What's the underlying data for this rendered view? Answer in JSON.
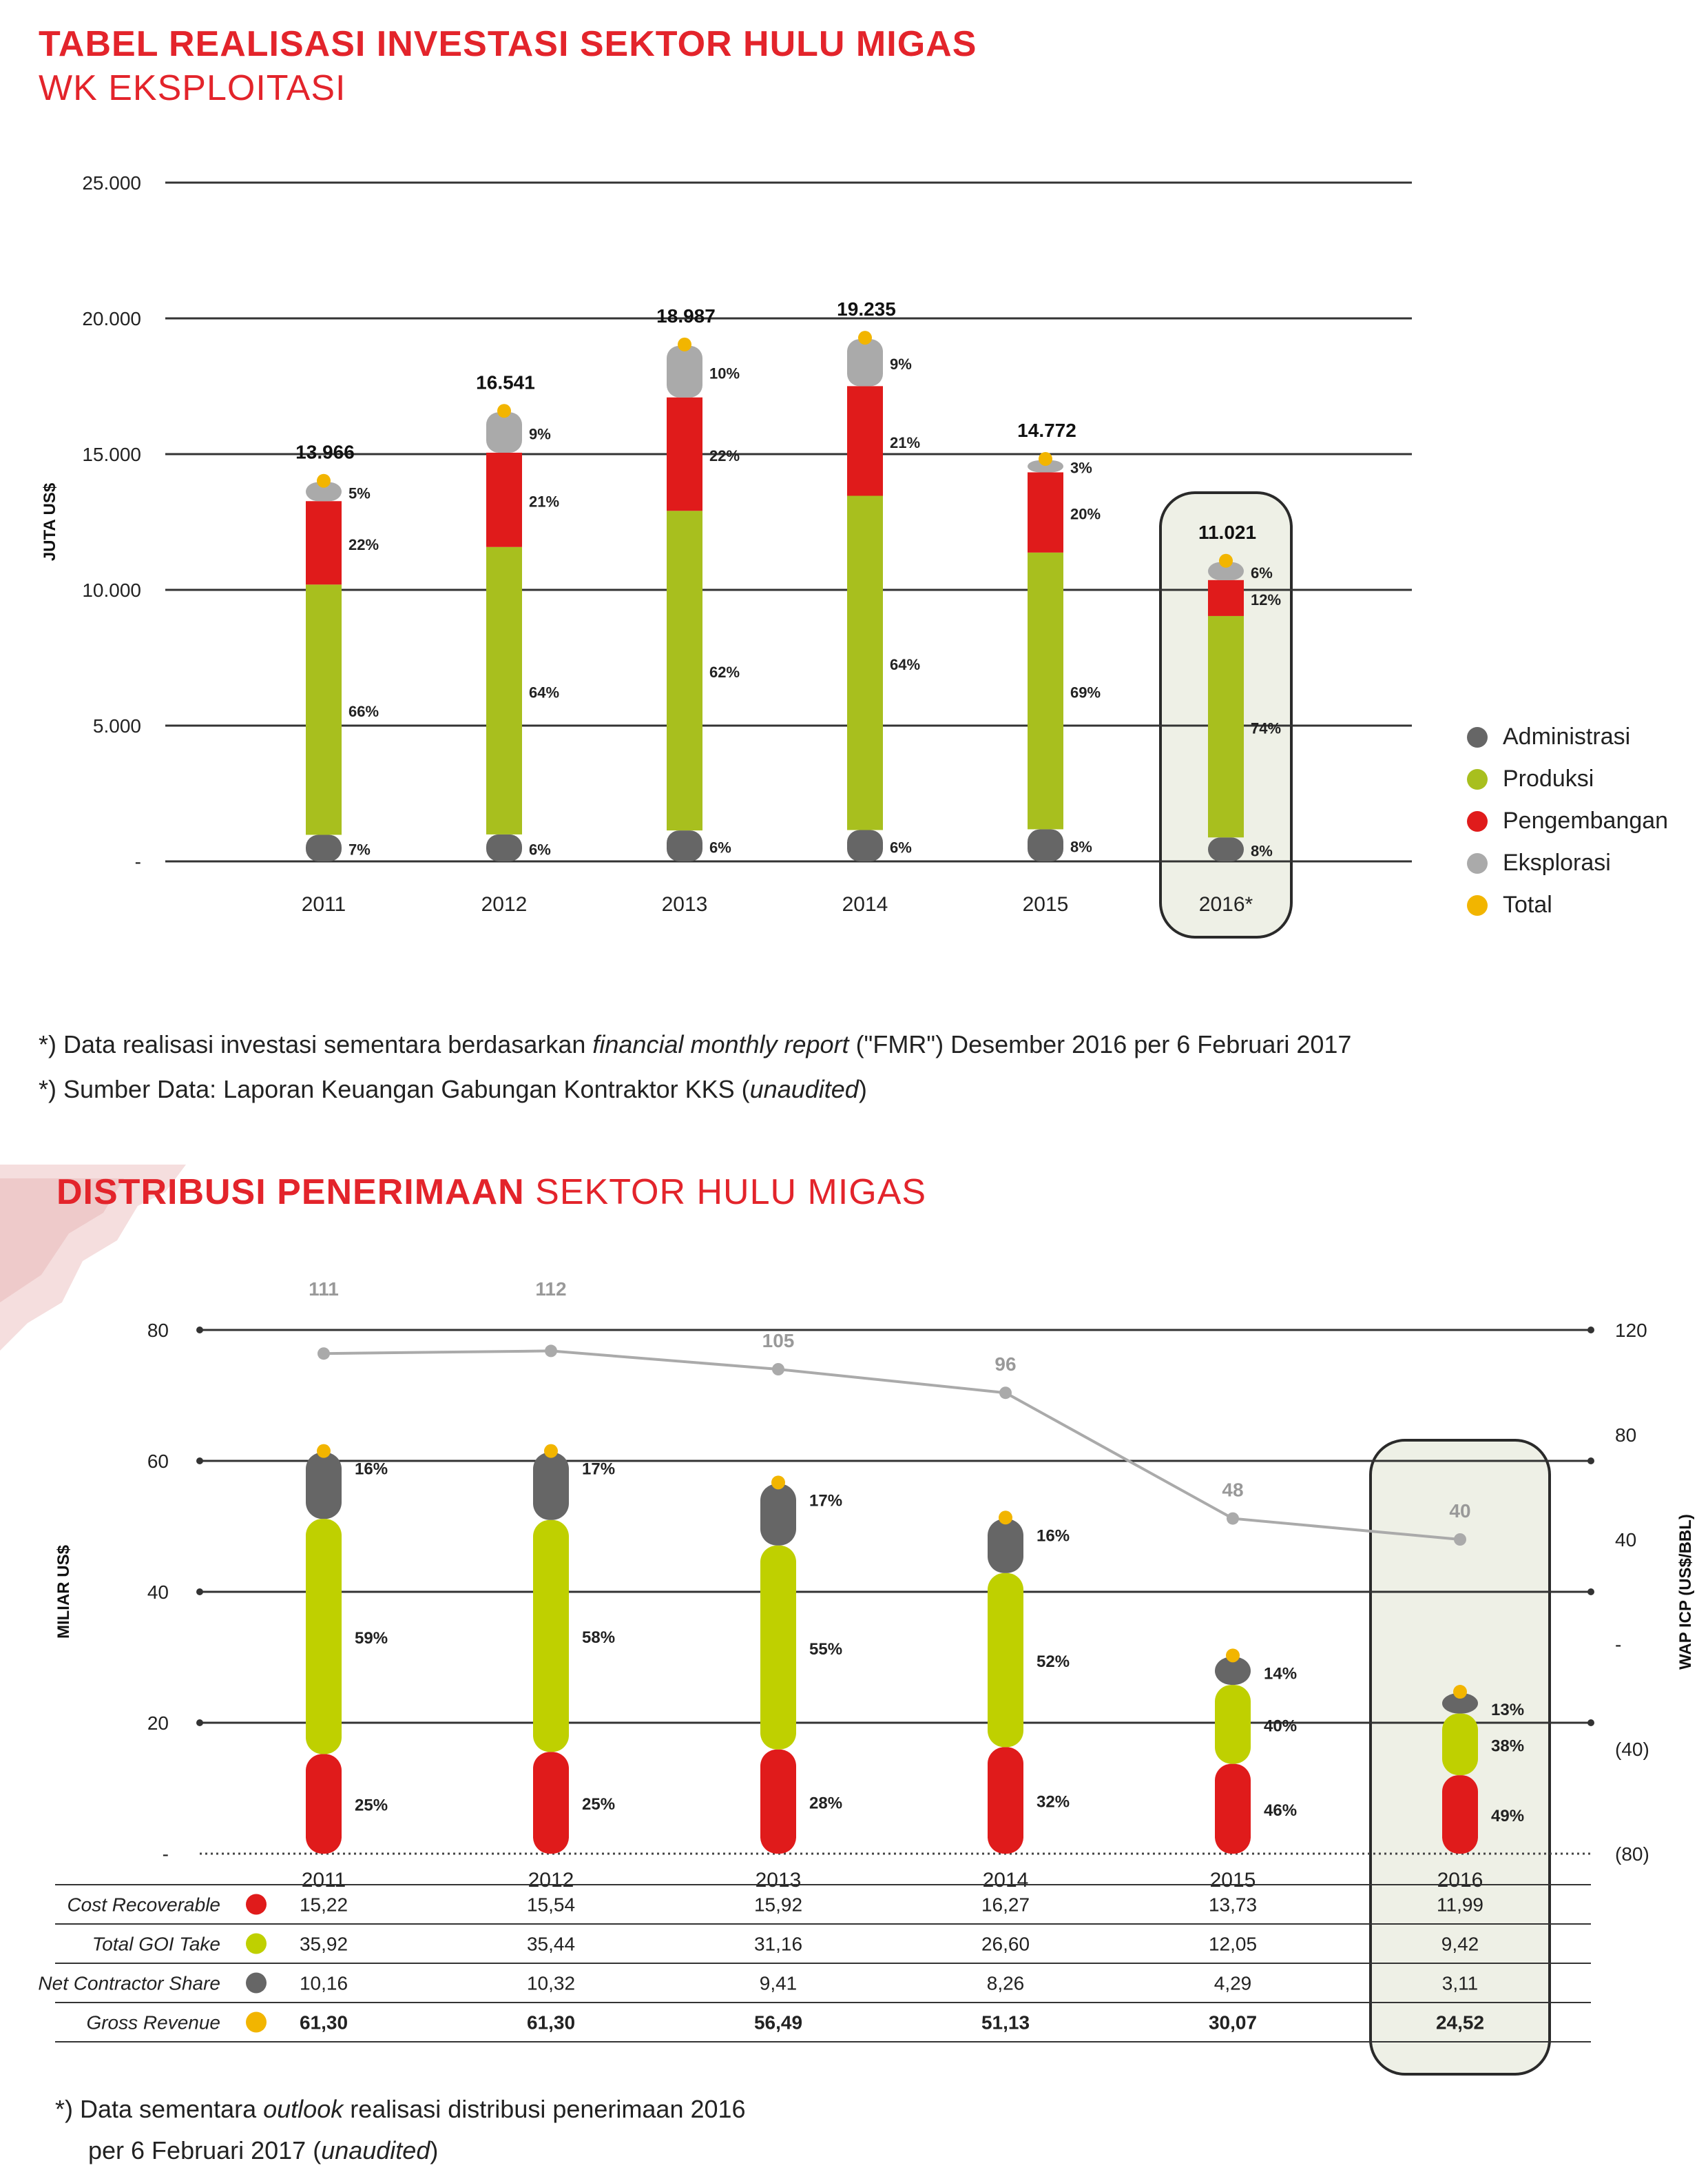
{
  "section1": {
    "title_bold": "TABEL REALISASI INVESTASI SEKTOR HULU MIGAS",
    "title_sub": "WK EKSPLOITASI",
    "notes": [
      {
        "prefix": "*) Data realisasi investasi sementara berdasarkan ",
        "em": "financial monthly report",
        "suffix": " (\"FMR\") Desember 2016 per 6 Februari 2017"
      },
      {
        "prefix": "*) Sumber Data: Laporan Keuangan Gabungan Kontraktor KKS (",
        "em": "unaudited",
        "suffix": ")"
      }
    ]
  },
  "section2": {
    "title_bold": "DISTRIBUSI PENERIMAAN",
    "title_sub": " SEKTOR HULU MIGAS",
    "notes": [
      {
        "prefix": "*)  Data sementara ",
        "em": "outlook",
        "suffix": " realisasi distribusi penerimaan 2016"
      },
      {
        "prefix": "per 6 Februari 2017 (",
        "em": "unaudited",
        "suffix": ")"
      }
    ]
  },
  "colors": {
    "administrasi": "#666666",
    "produksi": "#a8bf1e",
    "pengembangan": "#e01b1b",
    "eksplorasi": "#aaaaaa",
    "total": "#f2b500",
    "gov_take": "#bfd000",
    "icp_line": "#aaaaaa",
    "highlight_bg": "#eef0e6",
    "title_red": "#e3242b"
  },
  "chart_data": [
    {
      "type": "bar",
      "stacked": true,
      "ylabel": "JUTA US$",
      "ylim": [
        0,
        25000
      ],
      "yticks": [
        "-",
        "5.000",
        "10.000",
        "15.000",
        "20.000",
        "25.000"
      ],
      "ytick_values": [
        0,
        5000,
        10000,
        15000,
        20000,
        25000
      ],
      "categories": [
        "2011",
        "2012",
        "2013",
        "2014",
        "2015",
        "2016*"
      ],
      "highlight_category": "2016*",
      "totals": [
        13966,
        16541,
        18987,
        19235,
        14772,
        11021
      ],
      "total_labels": [
        "13.966",
        "16.541",
        "18.987",
        "19.235",
        "14.772",
        "11.021"
      ],
      "series": [
        {
          "name": "Administrasi",
          "color_key": "administrasi",
          "pct": [
            7,
            6,
            6,
            6,
            8,
            8
          ],
          "labels": [
            "7%",
            "6%",
            "6%",
            "6%",
            "8%",
            "8%"
          ]
        },
        {
          "name": "Produksi",
          "color_key": "produksi",
          "pct": [
            66,
            64,
            62,
            64,
            69,
            74
          ],
          "labels": [
            "66%",
            "64%",
            "62%",
            "64%",
            "69%",
            "74%"
          ]
        },
        {
          "name": "Pengembangan",
          "color_key": "pengembangan",
          "pct": [
            22,
            21,
            22,
            21,
            20,
            12
          ],
          "labels": [
            "22%",
            "21%",
            "22%",
            "21%",
            "20%",
            "12%"
          ]
        },
        {
          "name": "Eksplorasi",
          "color_key": "eksplorasi",
          "pct": [
            5,
            9,
            10,
            9,
            3,
            6
          ],
          "labels": [
            "5%",
            "9%",
            "10%",
            "9%",
            "3%",
            "6%"
          ]
        }
      ],
      "legend": [
        "Administrasi",
        "Produksi",
        "Pengembangan",
        "Eksplorasi",
        "Total"
      ],
      "legend_colors": [
        "administrasi",
        "produksi",
        "pengembangan",
        "eksplorasi",
        "total"
      ],
      "legend_position": "right",
      "grid": true
    },
    {
      "type": "bar",
      "stacked": true,
      "ylabel": "MILIAR US$",
      "ylabel_right": "WAP ICP (US$/BBL)",
      "ylim": [
        0,
        80
      ],
      "yticks": [
        "-",
        "20",
        "40",
        "60",
        "80"
      ],
      "ytick_values": [
        0,
        20,
        40,
        60,
        80
      ],
      "ylim_right": [
        -80,
        120
      ],
      "yticks_right": [
        "(80)",
        "(40)",
        "-",
        "40",
        "80",
        "120"
      ],
      "ytick_values_right": [
        -80,
        -40,
        0,
        40,
        80,
        120
      ],
      "categories": [
        "2011",
        "2012",
        "2013",
        "2014",
        "2015",
        "2016"
      ],
      "highlight_category": "2016",
      "series": [
        {
          "name": "Cost Recoverable",
          "color_key": "pengembangan",
          "values": [
            15.22,
            15.54,
            15.92,
            16.27,
            13.73,
            11.99
          ],
          "labels": [
            "15,22",
            "15,54",
            "15,92",
            "16,27",
            "13,73",
            "11,99"
          ],
          "pct_labels": [
            "25%",
            "25%",
            "28%",
            "32%",
            "46%",
            "49%"
          ]
        },
        {
          "name": "Total GOI Take",
          "color_key": "gov_take",
          "values": [
            35.92,
            35.44,
            31.16,
            26.6,
            12.05,
            9.42
          ],
          "labels": [
            "35,92",
            "35,44",
            "31,16",
            "26,60",
            "12,05",
            "9,42"
          ],
          "pct_labels": [
            "59%",
            "58%",
            "55%",
            "52%",
            "40%",
            "38%"
          ]
        },
        {
          "name": "Net Contractor Share",
          "color_key": "administrasi",
          "values": [
            10.16,
            10.32,
            9.41,
            8.26,
            4.29,
            3.11
          ],
          "labels": [
            "10,16",
            "10,32",
            "9,41",
            "8,26",
            "4,29",
            "3,11"
          ],
          "pct_labels": [
            "16%",
            "17%",
            "17%",
            "16%",
            "14%",
            "13%"
          ]
        },
        {
          "name": "Gross Revenue",
          "color_key": "total",
          "values": [
            61.3,
            61.3,
            56.49,
            51.13,
            30.07,
            24.52
          ],
          "labels": [
            "61,30",
            "61,30",
            "56,49",
            "51,13",
            "30,07",
            "24,52"
          ]
        }
      ],
      "icp_line": {
        "values": [
          111,
          112,
          105,
          96,
          48,
          40
        ],
        "labels": [
          "111",
          "112",
          "105",
          "96",
          "48",
          "40"
        ]
      },
      "grid": true
    }
  ]
}
